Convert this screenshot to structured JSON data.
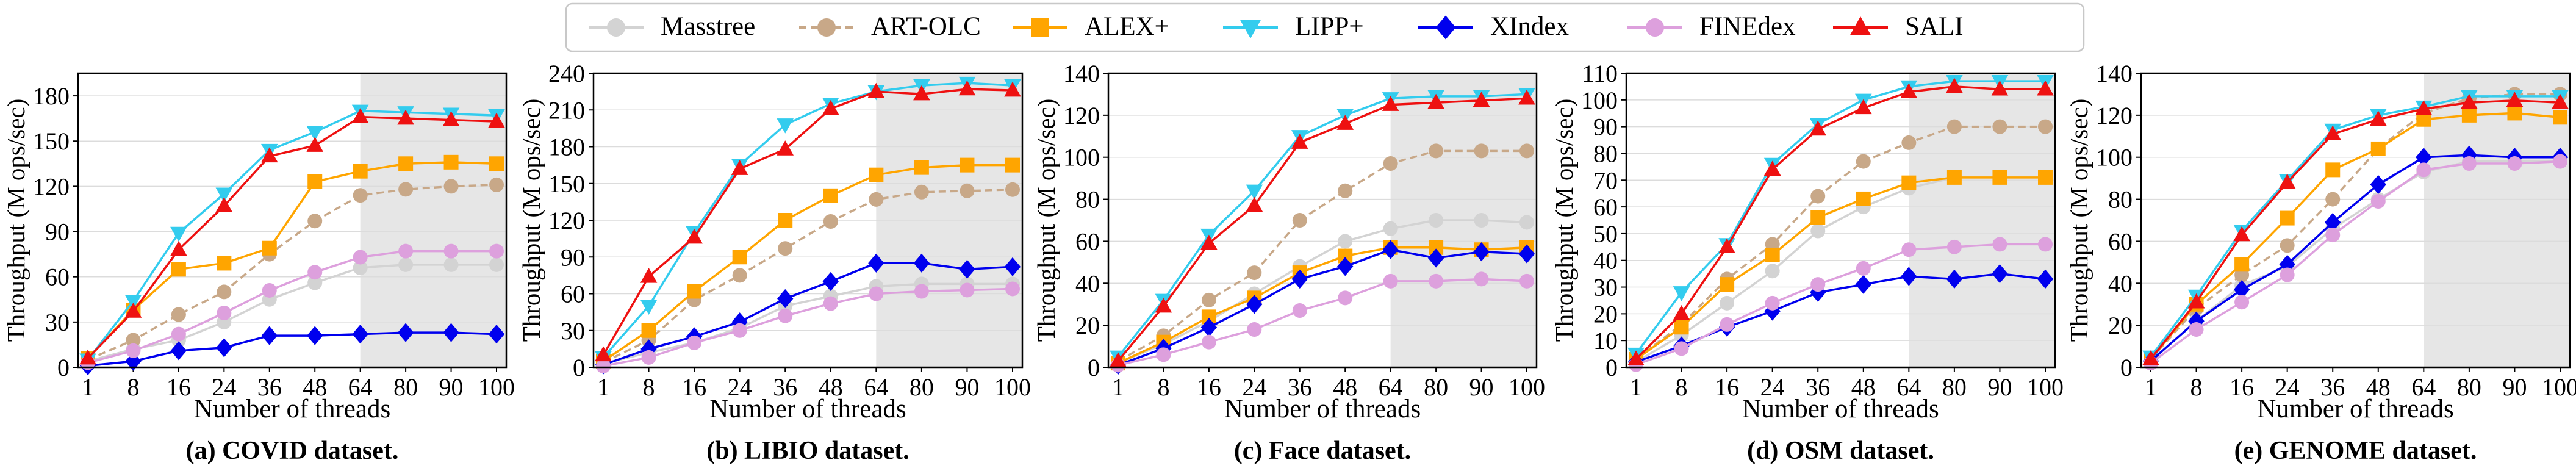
{
  "legend": {
    "items": [
      {
        "name": "Masstree",
        "color": "#d3d3d3",
        "marker": "circle",
        "dashed": false
      },
      {
        "name": "ART-OLC",
        "color": "#c8a888",
        "marker": "circle",
        "dashed": true
      },
      {
        "name": "ALEX+",
        "color": "#ffa500",
        "marker": "square",
        "dashed": false
      },
      {
        "name": "LIPP+",
        "color": "#33ccee",
        "marker": "triangle-down",
        "dashed": false
      },
      {
        "name": "XIndex",
        "color": "#0000ee",
        "marker": "diamond",
        "dashed": false
      },
      {
        "name": "FINEdex",
        "color": "#dda0dd",
        "marker": "circle",
        "dashed": false
      },
      {
        "name": "SALI",
        "color": "#ee1111",
        "marker": "triangle-up",
        "dashed": false
      }
    ]
  },
  "chart_data": [
    {
      "type": "line",
      "title": "(a) COVID dataset.",
      "xlabel": "Number of threads",
      "ylabel": "Throughput (M ops/sec)",
      "x": [
        1,
        8,
        16,
        24,
        36,
        48,
        64,
        80,
        90,
        100
      ],
      "x_tick_labels": [
        "1",
        "8",
        "16",
        "24",
        "36",
        "48",
        "64",
        "80",
        "90",
        "100"
      ],
      "ylim": [
        0,
        195
      ],
      "y_ticks": [
        0,
        30,
        60,
        90,
        120,
        150,
        180
      ],
      "shaded_from": "64",
      "series": [
        {
          "name": "Masstree",
          "values": [
            4,
            12,
            18,
            30,
            45,
            56,
            66,
            68,
            68,
            68
          ]
        },
        {
          "name": "ART-OLC",
          "values": [
            5,
            18,
            35,
            50,
            75,
            97,
            114,
            118,
            120,
            121
          ]
        },
        {
          "name": "ALEX+",
          "values": [
            6,
            38,
            65,
            69,
            79,
            123,
            130,
            135,
            136,
            135
          ]
        },
        {
          "name": "LIPP+",
          "values": [
            5,
            44,
            89,
            115,
            144,
            156,
            170,
            169,
            168,
            167
          ]
        },
        {
          "name": "XIndex",
          "values": [
            1,
            4,
            11,
            13,
            21,
            21,
            22,
            23,
            23,
            22
          ]
        },
        {
          "name": "FINEdex",
          "values": [
            3,
            11,
            22,
            36,
            51,
            63,
            73,
            77,
            77,
            77
          ]
        },
        {
          "name": "SALI",
          "values": [
            6,
            37,
            78,
            107,
            140,
            147,
            166,
            165,
            164,
            163
          ]
        }
      ]
    },
    {
      "type": "line",
      "title": "(b) LIBIO dataset.",
      "xlabel": "Number of threads",
      "ylabel": "Throughput (M ops/sec)",
      "x": [
        1,
        8,
        16,
        24,
        36,
        48,
        64,
        80,
        90,
        100
      ],
      "x_tick_labels": [
        "1",
        "8",
        "16",
        "24",
        "36",
        "48",
        "64",
        "80",
        "90",
        "100"
      ],
      "ylim": [
        0,
        240
      ],
      "y_ticks": [
        0,
        30,
        60,
        90,
        120,
        150,
        180,
        210,
        240
      ],
      "shaded_from": "64",
      "series": [
        {
          "name": "Masstree",
          "values": [
            3,
            12,
            20,
            32,
            50,
            58,
            66,
            68,
            68,
            68
          ]
        },
        {
          "name": "ART-OLC",
          "values": [
            4,
            22,
            55,
            75,
            97,
            119,
            137,
            143,
            144,
            145
          ]
        },
        {
          "name": "ALEX+",
          "values": [
            5,
            30,
            62,
            90,
            120,
            140,
            157,
            163,
            165,
            165
          ]
        },
        {
          "name": "LIPP+",
          "values": [
            8,
            50,
            110,
            165,
            198,
            215,
            225,
            230,
            232,
            230
          ]
        },
        {
          "name": "XIndex",
          "values": [
            2,
            15,
            25,
            37,
            56,
            70,
            85,
            85,
            80,
            82
          ]
        },
        {
          "name": "FINEdex",
          "values": [
            1,
            8,
            20,
            30,
            42,
            52,
            60,
            62,
            63,
            64
          ]
        },
        {
          "name": "SALI",
          "values": [
            10,
            74,
            106,
            162,
            178,
            211,
            225,
            223,
            227,
            226
          ]
        }
      ]
    },
    {
      "type": "line",
      "title": "(c) Face dataset.",
      "xlabel": "Number of threads",
      "ylabel": "Throughput (M ops/sec)",
      "x": [
        1,
        8,
        16,
        24,
        36,
        48,
        64,
        80,
        90,
        100
      ],
      "x_tick_labels": [
        "1",
        "8",
        "16",
        "24",
        "36",
        "48",
        "64",
        "80",
        "90",
        "100"
      ],
      "ylim": [
        0,
        140
      ],
      "y_ticks": [
        0,
        20,
        40,
        60,
        80,
        100,
        120,
        140
      ],
      "shaded_from": "64",
      "series": [
        {
          "name": "Masstree",
          "values": [
            2,
            11,
            22,
            35,
            48,
            60,
            66,
            70,
            70,
            69
          ]
        },
        {
          "name": "ART-OLC",
          "values": [
            3,
            15,
            32,
            45,
            70,
            84,
            97,
            103,
            103,
            103
          ]
        },
        {
          "name": "ALEX+",
          "values": [
            2,
            12,
            24,
            33,
            45,
            53,
            57,
            57,
            56,
            57
          ]
        },
        {
          "name": "LIPP+",
          "values": [
            5,
            32,
            63,
            84,
            110,
            120,
            128,
            129,
            129,
            130
          ]
        },
        {
          "name": "XIndex",
          "values": [
            1,
            9,
            19,
            30,
            42,
            48,
            56,
            52,
            55,
            54
          ]
        },
        {
          "name": "FINEdex",
          "values": [
            1,
            6,
            12,
            18,
            27,
            33,
            41,
            41,
            42,
            41
          ]
        },
        {
          "name": "SALI",
          "values": [
            3,
            29,
            59,
            77,
            107,
            116,
            125,
            126,
            127,
            128
          ]
        }
      ]
    },
    {
      "type": "line",
      "title": "(d) OSM dataset.",
      "xlabel": "Number of threads",
      "ylabel": "Throughput (M ops/sec)",
      "x": [
        1,
        8,
        16,
        24,
        36,
        48,
        64,
        80,
        90,
        100
      ],
      "x_tick_labels": [
        "1",
        "8",
        "16",
        "24",
        "36",
        "48",
        "64",
        "80",
        "90",
        "100"
      ],
      "ylim": [
        0,
        110
      ],
      "y_ticks": [
        0,
        10,
        20,
        30,
        40,
        50,
        60,
        70,
        80,
        90,
        100,
        110
      ],
      "shaded_from": "64",
      "series": [
        {
          "name": "Masstree",
          "values": [
            2,
            12,
            24,
            36,
            51,
            60,
            67,
            71,
            71,
            71
          ]
        },
        {
          "name": "ART-OLC",
          "values": [
            3,
            16,
            33,
            46,
            64,
            77,
            84,
            90,
            90,
            90
          ]
        },
        {
          "name": "ALEX+",
          "values": [
            3,
            15,
            31,
            42,
            56,
            63,
            69,
            71,
            71,
            71
          ]
        },
        {
          "name": "LIPP+",
          "values": [
            5,
            28,
            46,
            76,
            91,
            100,
            105,
            107,
            107,
            107
          ]
        },
        {
          "name": "XIndex",
          "values": [
            2,
            8,
            15,
            21,
            28,
            31,
            34,
            33,
            35,
            33
          ]
        },
        {
          "name": "FINEdex",
          "values": [
            1,
            7,
            16,
            24,
            31,
            37,
            44,
            45,
            46,
            46
          ]
        },
        {
          "name": "SALI",
          "values": [
            3,
            20,
            45,
            74,
            89,
            97,
            103,
            105,
            104,
            104
          ]
        }
      ]
    },
    {
      "type": "line",
      "title": "(e) GENOME dataset.",
      "xlabel": "Number of threads",
      "ylabel": "Throughput (M ops/sec)",
      "x": [
        1,
        8,
        16,
        24,
        36,
        48,
        64,
        80,
        90,
        100
      ],
      "x_tick_labels": [
        "1",
        "8",
        "16",
        "24",
        "36",
        "48",
        "64",
        "80",
        "90",
        "100"
      ],
      "ylim": [
        0,
        140
      ],
      "y_ticks": [
        0,
        20,
        40,
        60,
        80,
        100,
        120,
        140
      ],
      "shaded_from": "64",
      "series": [
        {
          "name": "Masstree",
          "values": [
            3,
            22,
            39,
            48,
            66,
            80,
            93,
            98,
            98,
            98
          ]
        },
        {
          "name": "ART-OLC",
          "values": [
            4,
            28,
            44,
            58,
            80,
            104,
            121,
            128,
            130,
            130
          ]
        },
        {
          "name": "ALEX+",
          "values": [
            4,
            30,
            49,
            71,
            94,
            104,
            118,
            120,
            121,
            119
          ]
        },
        {
          "name": "LIPP+",
          "values": [
            5,
            34,
            65,
            89,
            113,
            120,
            124,
            129,
            129,
            129
          ]
        },
        {
          "name": "XIndex",
          "values": [
            3,
            22,
            37,
            49,
            69,
            87,
            100,
            101,
            100,
            100
          ]
        },
        {
          "name": "FINEdex",
          "values": [
            2,
            18,
            31,
            44,
            63,
            79,
            94,
            97,
            97,
            98
          ]
        },
        {
          "name": "SALI",
          "values": [
            4,
            31,
            63,
            88,
            111,
            118,
            123,
            126,
            127,
            126
          ]
        }
      ]
    }
  ]
}
